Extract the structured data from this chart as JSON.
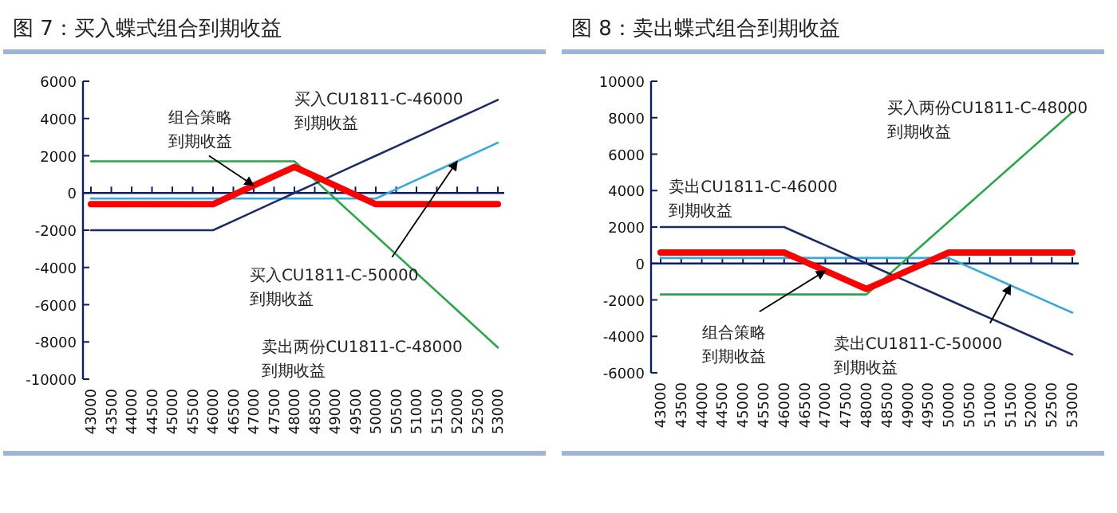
{
  "chart_data": [
    {
      "type": "line",
      "title": "图 7：买入蝶式组合到期收益",
      "categories": [
        "43000",
        "43500",
        "44000",
        "44500",
        "45000",
        "45500",
        "46000",
        "46500",
        "47000",
        "47500",
        "48000",
        "48500",
        "49000",
        "49500",
        "50000",
        "50500",
        "51000",
        "51500",
        "52000",
        "52500",
        "53000"
      ],
      "series": [
        {
          "name": "组合策略到期收益",
          "color": "#ff0000",
          "values": [
            -600,
            -600,
            -600,
            -600,
            -600,
            -600,
            -600,
            -100,
            400,
            900,
            1400,
            900,
            400,
            -100,
            -600,
            -600,
            -600,
            -600,
            -600,
            -600,
            -600
          ]
        },
        {
          "name": "买入CU1811-C-46000到期收益",
          "color": "#1f2a6b",
          "values": [
            -2000,
            -2000,
            -2000,
            -2000,
            -2000,
            -2000,
            -2000,
            -1500,
            -1000,
            -500,
            0,
            500,
            1000,
            1500,
            2000,
            2500,
            3000,
            3500,
            4000,
            4500,
            5000
          ]
        },
        {
          "name": "卖出两份CU1811-C-48000到期收益",
          "color": "#22aa44",
          "values": [
            1700,
            1700,
            1700,
            1700,
            1700,
            1700,
            1700,
            1700,
            1700,
            1700,
            1700,
            700,
            -300,
            -1300,
            -2300,
            -3300,
            -4300,
            -5300,
            -6300,
            -7300,
            -8300
          ]
        },
        {
          "name": "买入CU1811-C-50000到期收益",
          "color": "#33aadd",
          "values": [
            -300,
            -300,
            -300,
            -300,
            -300,
            -300,
            -300,
            -300,
            -300,
            -300,
            -300,
            -300,
            -300,
            -300,
            -300,
            200,
            700,
            1200,
            1700,
            2200,
            2700
          ]
        }
      ],
      "ylim": [
        -10000,
        6000
      ],
      "yticks": [
        -10000,
        -8000,
        -6000,
        -4000,
        -2000,
        0,
        2000,
        4000,
        6000
      ],
      "ref_lines": [
        {
          "axis": "y",
          "value": 0,
          "color": "#0a1f6b"
        }
      ],
      "legend": false,
      "grid": false
    },
    {
      "type": "line",
      "title": "图 8：卖出蝶式组合到期收益",
      "categories": [
        "43000",
        "43500",
        "44000",
        "44500",
        "45000",
        "45500",
        "46000",
        "46500",
        "47000",
        "47500",
        "48000",
        "48500",
        "49000",
        "49500",
        "50000",
        "50500",
        "51000",
        "51500",
        "52000",
        "52500",
        "53000"
      ],
      "series": [
        {
          "name": "组合策略到期收益",
          "color": "#ff0000",
          "values": [
            600,
            600,
            600,
            600,
            600,
            600,
            600,
            100,
            -400,
            -900,
            -1400,
            -900,
            -400,
            100,
            600,
            600,
            600,
            600,
            600,
            600,
            600
          ]
        },
        {
          "name": "卖出CU1811-C-46000到期收益",
          "color": "#1f2a6b",
          "values": [
            2000,
            2000,
            2000,
            2000,
            2000,
            2000,
            2000,
            1500,
            1000,
            500,
            0,
            -500,
            -1000,
            -1500,
            -2000,
            -2500,
            -3000,
            -3500,
            -4000,
            -4500,
            -5000
          ]
        },
        {
          "name": "买入两份CU1811-C-48000到期收益",
          "color": "#22aa44",
          "values": [
            -1700,
            -1700,
            -1700,
            -1700,
            -1700,
            -1700,
            -1700,
            -1700,
            -1700,
            -1700,
            -1700,
            -700,
            300,
            1300,
            2300,
            3300,
            4300,
            5300,
            6300,
            7300,
            8300
          ]
        },
        {
          "name": "卖出CU1811-C-50000到期收益",
          "color": "#33aadd",
          "values": [
            300,
            300,
            300,
            300,
            300,
            300,
            300,
            300,
            300,
            300,
            300,
            300,
            300,
            300,
            300,
            -200,
            -700,
            -1200,
            -1700,
            -2200,
            -2700
          ]
        }
      ],
      "ylim": [
        -6000,
        10000
      ],
      "yticks": [
        -6000,
        -4000,
        -2000,
        0,
        2000,
        4000,
        6000,
        8000,
        10000
      ],
      "ref_lines": [
        {
          "axis": "y",
          "value": 0,
          "color": "#0a1f6b"
        }
      ],
      "legend": false,
      "grid": false
    }
  ]
}
